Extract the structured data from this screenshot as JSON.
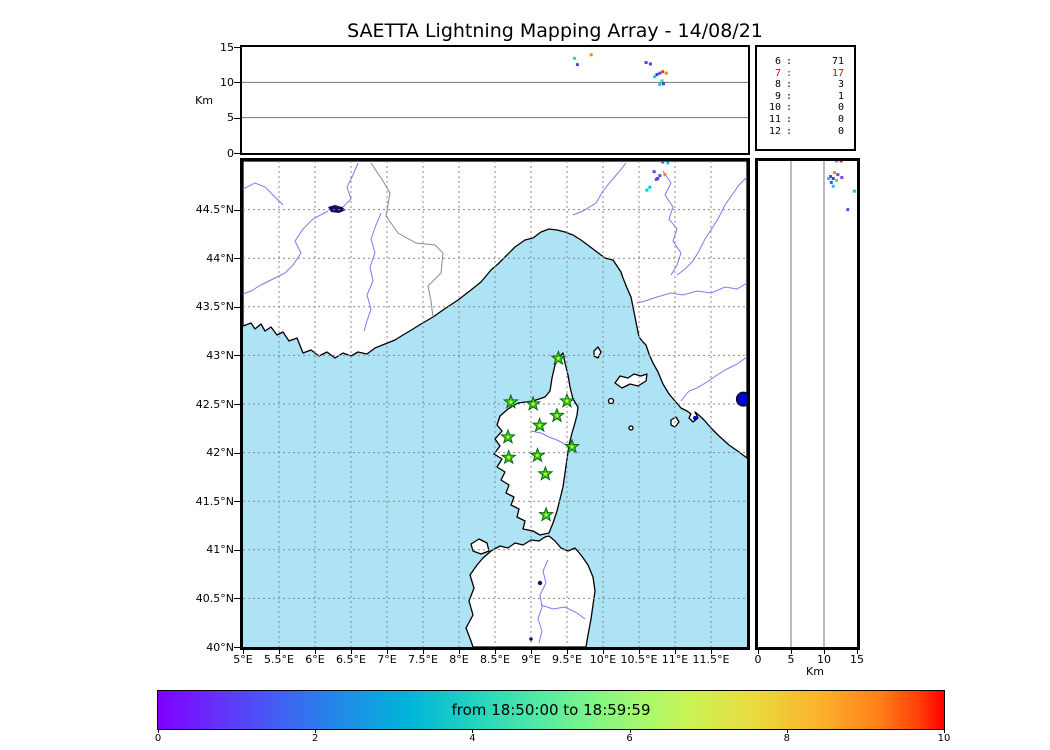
{
  "title": "SAETTA Lightning Mapping Array - 14/08/21",
  "top_panel": {
    "ylabel": "Km",
    "yticks": [
      "0",
      "5",
      "10",
      "15"
    ]
  },
  "right_panel": {
    "xlabel": "Km",
    "xticks": [
      "0",
      "5",
      "10",
      "15"
    ]
  },
  "map": {
    "lon_ticks": [
      "5°E",
      "5.5°E",
      "6°E",
      "6.5°E",
      "7°E",
      "7.5°E",
      "8°E",
      "8.5°E",
      "9°E",
      "9.5°E",
      "10°E",
      "10.5°E",
      "11°E",
      "11.5°E"
    ],
    "lat_ticks": [
      "40°N",
      "40.5°N",
      "41°N",
      "41.5°N",
      "42°N",
      "42.5°N",
      "43°N",
      "43.5°N",
      "44°N",
      "44.5°N"
    ]
  },
  "colorbar": {
    "label": "from 18:50:00 to 18:59:59",
    "ticks": [
      "0",
      "2",
      "4",
      "6",
      "8",
      "10"
    ]
  },
  "colors": {
    "sea": "#aee3f5",
    "land": "#ffffff",
    "coast": "#000000",
    "river": "#7b7bf0",
    "border": "#8a8a8a",
    "grid": "#888888",
    "panel_grid": "#777777",
    "station_fill": "#2ed02e",
    "station_edge": "#0a6a0a",
    "station_center": "#ffe800",
    "sensor_dot": "#0000cc",
    "highlight_count": "#e00000"
  },
  "chart_data": {
    "type": "scatter",
    "title": "SAETTA Lightning Mapping Array - 14/08/21",
    "colorbar": {
      "label": "from 18:50:00 to 18:59:59",
      "range": [
        0,
        10
      ],
      "colormap": "rainbow",
      "ticks": [
        0,
        2,
        4,
        6,
        8,
        10
      ]
    },
    "counts": [
      {
        "bin": "6",
        "value": "71",
        "highlight": false
      },
      {
        "bin": "7",
        "value": "17",
        "highlight": true
      },
      {
        "bin": "8",
        "value": "3",
        "highlight": false
      },
      {
        "bin": "9",
        "value": "1",
        "highlight": false
      },
      {
        "bin": "10",
        "value": "0",
        "highlight": false
      },
      {
        "bin": "11",
        "value": "0",
        "highlight": false
      },
      {
        "bin": "12",
        "value": "0",
        "highlight": false
      }
    ],
    "panels": {
      "alt_vs_lon": {
        "x_range_lon_deg": [
          5,
          12
        ],
        "y_range_km": [
          0,
          15
        ],
        "gridlines_km": [
          5,
          10
        ],
        "points": [
          {
            "lon": 10.59,
            "alt_km": 12.8,
            "color": "#3b4fd8"
          },
          {
            "lon": 10.65,
            "alt_km": 12.6,
            "color": "#3b4fd8"
          },
          {
            "lon": 10.82,
            "alt_km": 11.5,
            "color": "#ff3300"
          },
          {
            "lon": 10.87,
            "alt_km": 11.3,
            "color": "#ff8800"
          },
          {
            "lon": 10.78,
            "alt_km": 11.3,
            "color": "#4455ee"
          },
          {
            "lon": 10.74,
            "alt_km": 11.1,
            "color": "#3344dd"
          },
          {
            "lon": 10.71,
            "alt_km": 10.8,
            "color": "#00ccee"
          },
          {
            "lon": 10.81,
            "alt_km": 10.2,
            "color": "#44dd66"
          },
          {
            "lon": 10.83,
            "alt_km": 9.8,
            "color": "#3344dd"
          },
          {
            "lon": 10.78,
            "alt_km": 9.7,
            "color": "#00ccee"
          },
          {
            "lon": 9.6,
            "alt_km": 13.4,
            "color": "#44dd66"
          },
          {
            "lon": 9.64,
            "alt_km": 12.5,
            "color": "#3b4fd8"
          },
          {
            "lon": 9.83,
            "alt_km": 13.9,
            "color": "#ff8800"
          }
        ]
      },
      "map": {
        "lon_range": [
          5,
          12
        ],
        "lat_range": [
          40,
          45
        ],
        "lightning_points": [
          {
            "lon": 10.83,
            "lat": 44.99,
            "color": "#3b4fd8"
          },
          {
            "lon": 10.9,
            "lat": 44.98,
            "color": "#00ccee"
          },
          {
            "lon": 10.71,
            "lat": 44.89,
            "color": "#3b4fd8"
          },
          {
            "lon": 10.86,
            "lat": 44.86,
            "color": "#ff8800"
          },
          {
            "lon": 10.79,
            "lat": 44.85,
            "color": "#4455ee"
          },
          {
            "lon": 10.76,
            "lat": 44.82,
            "color": "#3344dd"
          },
          {
            "lon": 10.74,
            "lat": 44.81,
            "color": "#7744ee"
          },
          {
            "lon": 10.65,
            "lat": 44.73,
            "color": "#00ccee"
          },
          {
            "lon": 10.61,
            "lat": 44.7,
            "color": "#00ccee"
          }
        ],
        "stations": [
          {
            "lon": 9.38,
            "lat": 42.97
          },
          {
            "lon": 8.72,
            "lat": 42.52
          },
          {
            "lon": 9.03,
            "lat": 42.5
          },
          {
            "lon": 9.5,
            "lat": 42.53
          },
          {
            "lon": 9.36,
            "lat": 42.38
          },
          {
            "lon": 9.12,
            "lat": 42.28
          },
          {
            "lon": 8.68,
            "lat": 42.16
          },
          {
            "lon": 9.57,
            "lat": 42.06
          },
          {
            "lon": 9.09,
            "lat": 41.97
          },
          {
            "lon": 8.69,
            "lat": 41.95
          },
          {
            "lon": 9.2,
            "lat": 41.78
          },
          {
            "lon": 9.21,
            "lat": 41.36
          }
        ],
        "sensor_dot": {
          "lon": 11.95,
          "lat": 42.55,
          "color": "#0000cc"
        }
      },
      "alt_vs_lat": {
        "x_range_km": [
          0,
          15
        ],
        "lat_range": [
          40,
          45
        ],
        "gridlines_km": [
          5,
          10
        ],
        "points": [
          {
            "alt_km": 11.9,
            "lat": 45.0,
            "color": "#00ccee"
          },
          {
            "alt_km": 12.6,
            "lat": 45.0,
            "color": "#ff3300"
          },
          {
            "alt_km": 11.6,
            "lat": 44.88,
            "color": "#ff8800"
          },
          {
            "alt_km": 12.1,
            "lat": 44.86,
            "color": "#7744ee"
          },
          {
            "alt_km": 11.0,
            "lat": 44.84,
            "color": "#3b4fd8"
          },
          {
            "alt_km": 10.7,
            "lat": 44.82,
            "color": "#00ccee"
          },
          {
            "alt_km": 11.4,
            "lat": 44.82,
            "color": "#3344dd"
          },
          {
            "alt_km": 12.7,
            "lat": 44.83,
            "color": "#7744ee"
          },
          {
            "alt_km": 11.9,
            "lat": 44.8,
            "color": "#44dd66"
          },
          {
            "alt_km": 11.1,
            "lat": 44.78,
            "color": "#3b4fd8"
          },
          {
            "alt_km": 11.4,
            "lat": 44.74,
            "color": "#00ccee"
          },
          {
            "alt_km": 14.6,
            "lat": 44.69,
            "color": "#00ccee"
          },
          {
            "alt_km": 13.6,
            "lat": 44.5,
            "color": "#7744ee"
          }
        ]
      }
    }
  }
}
